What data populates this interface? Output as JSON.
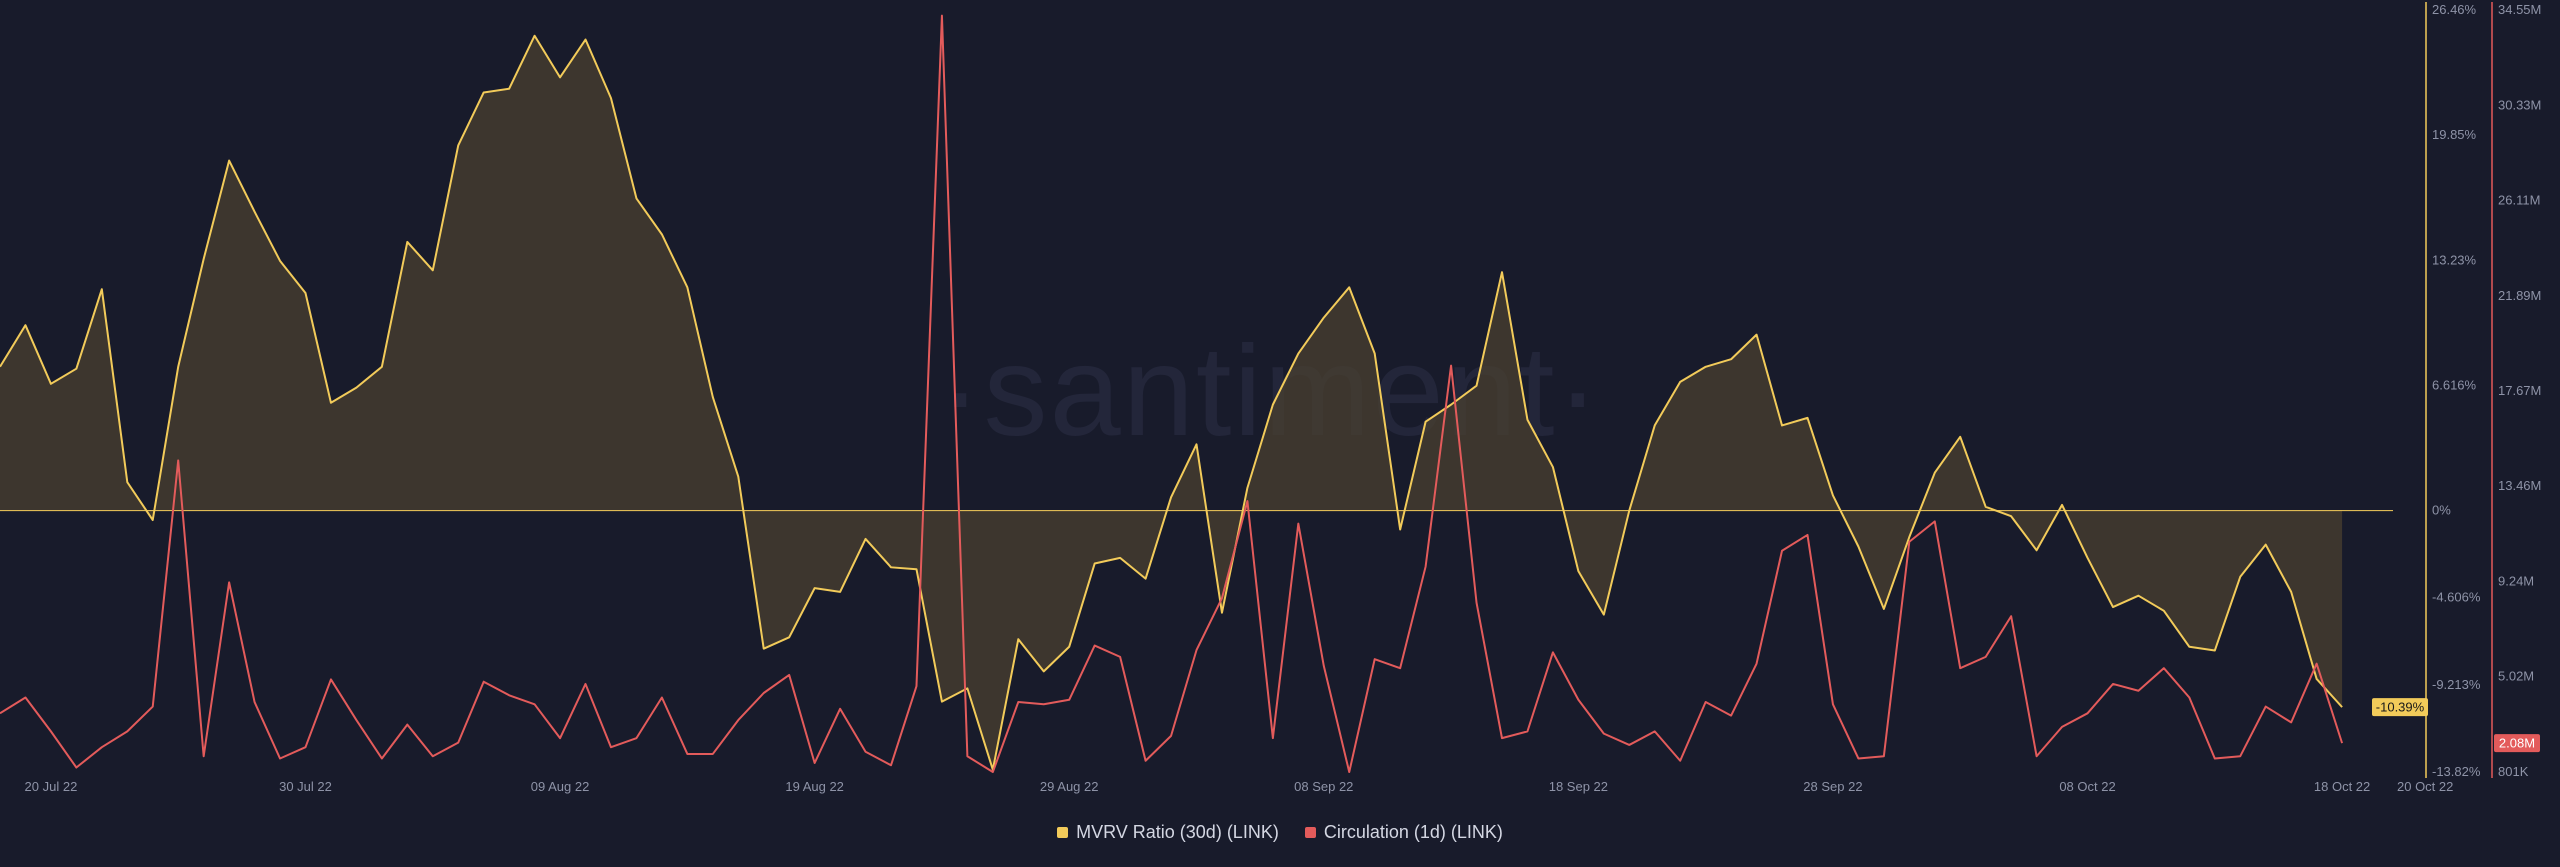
{
  "watermark": "·santiment·",
  "legend": [
    {
      "label": "MVRV Ratio (30d) (LINK)",
      "color": "#f2cb5a"
    },
    {
      "label": "Circulation (1d) (LINK)",
      "color": "#e35b5b"
    }
  ],
  "chart_data": {
    "type": "line",
    "x_dates": [
      "2022-07-18",
      "2022-07-19",
      "2022-07-20",
      "2022-07-21",
      "2022-07-22",
      "2022-07-23",
      "2022-07-24",
      "2022-07-25",
      "2022-07-26",
      "2022-07-27",
      "2022-07-28",
      "2022-07-29",
      "2022-07-30",
      "2022-07-31",
      "2022-08-01",
      "2022-08-02",
      "2022-08-03",
      "2022-08-04",
      "2022-08-05",
      "2022-08-06",
      "2022-08-07",
      "2022-08-08",
      "2022-08-09",
      "2022-08-10",
      "2022-08-11",
      "2022-08-12",
      "2022-08-13",
      "2022-08-14",
      "2022-08-15",
      "2022-08-16",
      "2022-08-17",
      "2022-08-18",
      "2022-08-19",
      "2022-08-20",
      "2022-08-21",
      "2022-08-22",
      "2022-08-23",
      "2022-08-24",
      "2022-08-25",
      "2022-08-26",
      "2022-08-27",
      "2022-08-28",
      "2022-08-29",
      "2022-08-30",
      "2022-08-31",
      "2022-09-01",
      "2022-09-02",
      "2022-09-03",
      "2022-09-04",
      "2022-09-05",
      "2022-09-06",
      "2022-09-07",
      "2022-09-08",
      "2022-09-09",
      "2022-09-10",
      "2022-09-11",
      "2022-09-12",
      "2022-09-13",
      "2022-09-14",
      "2022-09-15",
      "2022-09-16",
      "2022-09-17",
      "2022-09-18",
      "2022-09-19",
      "2022-09-20",
      "2022-09-21",
      "2022-09-22",
      "2022-09-23",
      "2022-09-24",
      "2022-09-25",
      "2022-09-26",
      "2022-09-27",
      "2022-09-28",
      "2022-09-29",
      "2022-09-30",
      "2022-10-01",
      "2022-10-02",
      "2022-10-03",
      "2022-10-04",
      "2022-10-05",
      "2022-10-06",
      "2022-10-07",
      "2022-10-08",
      "2022-10-09",
      "2022-10-10",
      "2022-10-11",
      "2022-10-12",
      "2022-10-13",
      "2022-10-14",
      "2022-10-15",
      "2022-10-16",
      "2022-10-17",
      "2022-10-18",
      "2022-10-19",
      "2022-10-20"
    ],
    "x_ticks": [
      {
        "date": "2022-07-20",
        "label": "20 Jul 22"
      },
      {
        "date": "2022-07-30",
        "label": "30 Jul 22"
      },
      {
        "date": "2022-08-09",
        "label": "09 Aug 22"
      },
      {
        "date": "2022-08-19",
        "label": "19 Aug 22"
      },
      {
        "date": "2022-08-29",
        "label": "29 Aug 22"
      },
      {
        "date": "2022-09-08",
        "label": "08 Sep 22"
      },
      {
        "date": "2022-09-18",
        "label": "18 Sep 22"
      },
      {
        "date": "2022-09-28",
        "label": "28 Sep 22"
      },
      {
        "date": "2022-10-08",
        "label": "08 Oct 22"
      },
      {
        "date": "2022-10-18",
        "label": "18 Oct 22"
      },
      {
        "date": "2022-10-20",
        "label": "20 Oct 22"
      }
    ],
    "series": [
      {
        "name": "MVRV Ratio (30d) (LINK)",
        "axis": "mvrv",
        "color": "#f2cb5a",
        "area": true,
        "last_value_label": "-10.39%",
        "values": [
          7.6,
          9.8,
          6.7,
          7.5,
          11.7,
          1.5,
          -0.5,
          7.6,
          13.3,
          18.5,
          15.8,
          13.2,
          11.5,
          5.7,
          6.5,
          7.6,
          14.2,
          12.7,
          19.3,
          22.1,
          22.3,
          25.1,
          22.9,
          24.9,
          21.8,
          16.5,
          14.6,
          11.8,
          6.0,
          1.8,
          -7.3,
          -6.7,
          -4.1,
          -4.3,
          -1.5,
          -3.0,
          -3.1,
          -10.1,
          -9.4,
          -13.7,
          -6.8,
          -8.5,
          -7.2,
          -2.8,
          -2.5,
          -3.6,
          0.7,
          3.5,
          -5.4,
          1.2,
          5.6,
          8.3,
          10.2,
          11.8,
          8.3,
          -1.0,
          4.7,
          5.6,
          6.6,
          12.6,
          4.8,
          2.3,
          -3.2,
          -5.5,
          0.0,
          4.5,
          6.8,
          7.6,
          8.0,
          9.3,
          4.5,
          4.9,
          0.8,
          -1.9,
          -5.2,
          -1.4,
          2.0,
          3.9,
          0.2,
          -0.3,
          -2.1,
          0.3,
          -2.5,
          -5.1,
          -4.5,
          -5.3,
          -7.2,
          -7.4,
          -3.5,
          -1.8,
          -4.3,
          -8.9,
          -10.39
        ]
      },
      {
        "name": "Circulation (1d) (LINK)",
        "axis": "circulation",
        "color": "#e35b5b",
        "area": false,
        "last_value_label": "2.08M",
        "values": [
          3.4,
          4.1,
          2.6,
          1.0,
          1.9,
          2.6,
          3.7,
          14.6,
          1.5,
          9.2,
          3.9,
          1.4,
          1.9,
          4.9,
          3.1,
          1.4,
          2.9,
          1.5,
          2.1,
          4.8,
          4.2,
          3.8,
          2.3,
          4.7,
          1.9,
          2.3,
          4.1,
          1.6,
          1.6,
          3.1,
          4.3,
          5.1,
          1.2,
          3.6,
          1.7,
          1.1,
          4.6,
          34.3,
          1.5,
          0.8,
          3.9,
          3.8,
          4.0,
          6.4,
          5.9,
          1.3,
          2.4,
          6.2,
          8.5,
          12.8,
          2.3,
          11.8,
          5.5,
          0.8,
          5.8,
          5.4,
          9.9,
          18.8,
          8.3,
          2.3,
          2.6,
          6.1,
          4.0,
          2.5,
          2.0,
          2.6,
          1.3,
          3.9,
          3.3,
          5.6,
          10.6,
          11.3,
          3.8,
          1.4,
          1.5,
          11.0,
          11.9,
          5.4,
          5.9,
          7.7,
          1.5,
          2.8,
          3.4,
          4.7,
          4.4,
          5.4,
          4.1,
          1.4,
          1.5,
          3.7,
          3.0,
          5.6,
          2.08
        ]
      }
    ],
    "axes": [
      {
        "id": "mvrv",
        "position": "right",
        "color": "#f2cb5a",
        "range": [
          -13.82,
          26.46
        ],
        "unit": "%",
        "ticks": [
          {
            "v": 26.46,
            "label": "26.46%"
          },
          {
            "v": 19.85,
            "label": "19.85%"
          },
          {
            "v": 13.23,
            "label": "13.23%"
          },
          {
            "v": 6.616,
            "label": "6.616%"
          },
          {
            "v": 0,
            "label": "0%"
          },
          {
            "v": -4.606,
            "label": "-4.606%"
          },
          {
            "v": -9.213,
            "label": "-9.213%"
          },
          {
            "v": -13.82,
            "label": "-13.82%"
          }
        ]
      },
      {
        "id": "circulation",
        "position": "right",
        "color": "#e35b5b",
        "range": [
          0.801,
          34.55
        ],
        "unit": "M",
        "ticks": [
          {
            "v": 34.55,
            "label": "34.55M"
          },
          {
            "v": 30.33,
            "label": "30.33M"
          },
          {
            "v": 26.11,
            "label": "26.11M"
          },
          {
            "v": 21.89,
            "label": "21.89M"
          },
          {
            "v": 17.67,
            "label": "17.67M"
          },
          {
            "v": 13.46,
            "label": "13.46M"
          },
          {
            "v": 9.24,
            "label": "9.24M"
          },
          {
            "v": 5.02,
            "label": "5.02M"
          },
          {
            "v": 0.801,
            "label": "801K"
          }
        ]
      }
    ],
    "zero_line": true,
    "grid": false,
    "legend_position": "bottom-center"
  }
}
